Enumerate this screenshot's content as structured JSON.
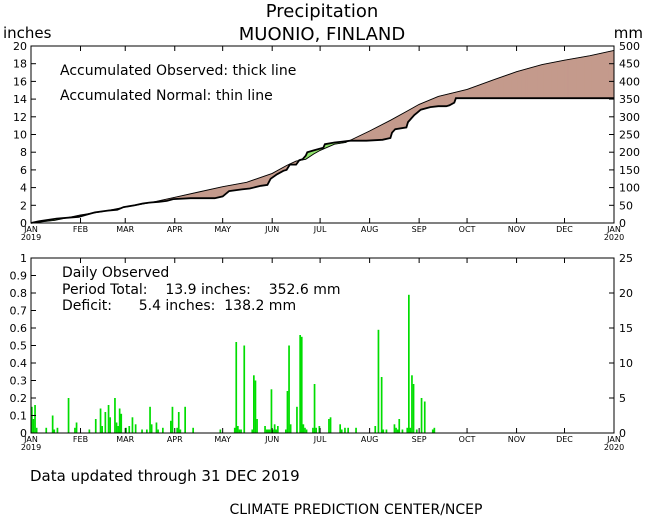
{
  "header": {
    "title": "Precipitation",
    "location": "MUONIO, FINLAND",
    "left_unit": "inches",
    "right_unit": "mm"
  },
  "footer": {
    "updated": "Data updated through 31 DEC 2019",
    "credit": "CLIMATE PREDICTION CENTER/NCEP"
  },
  "colors": {
    "deficit_fill": "#c49a8c",
    "surplus_fill": "#8fe36b",
    "daily_bar": "#00dd00",
    "axes": "#000000"
  },
  "chart_data": [
    {
      "type": "area",
      "legend": [
        "Accumulated Observed: thick line",
        "Accumulated Normal: thin line"
      ],
      "x_ticks": [
        "JAN",
        "FEB",
        "MAR",
        "APR",
        "MAY",
        "JUN",
        "JUL",
        "AUG",
        "SEP",
        "OCT",
        "NOV",
        "DEC",
        "JAN"
      ],
      "x_start_year": "2019",
      "x_end_year": "2020",
      "x_tick_days": [
        0,
        31,
        59,
        90,
        120,
        151,
        181,
        212,
        243,
        273,
        304,
        334,
        365
      ],
      "xlim": [
        0,
        365
      ],
      "ylim": [
        0,
        20
      ],
      "y_ticks": [
        "0",
        "2",
        "4",
        "6",
        "8",
        "10",
        "12",
        "14",
        "16",
        "18",
        "20"
      ],
      "y2lim": [
        0,
        500
      ],
      "y2_ticks": [
        "0",
        "50",
        "100",
        "150",
        "200",
        "250",
        "300",
        "350",
        "400",
        "450",
        "500"
      ],
      "series": [
        {
          "name": "Accumulated Normal",
          "points": [
            [
              0,
              0
            ],
            [
              15,
              0.3
            ],
            [
              31,
              0.9
            ],
            [
              45,
              1.3
            ],
            [
              59,
              1.8
            ],
            [
              75,
              2.3
            ],
            [
              90,
              2.9
            ],
            [
              105,
              3.5
            ],
            [
              120,
              4.1
            ],
            [
              135,
              4.6
            ],
            [
              151,
              5.6
            ],
            [
              160,
              6.5
            ],
            [
              166,
              7.0
            ],
            [
              172,
              7.2
            ],
            [
              177,
              7.8
            ],
            [
              181,
              8.2
            ],
            [
              190,
              8.9
            ],
            [
              197,
              9.1
            ],
            [
              212,
              10.4
            ],
            [
              225,
              11.6
            ],
            [
              235,
              12.6
            ],
            [
              243,
              13.4
            ],
            [
              255,
              14.3
            ],
            [
              273,
              15.1
            ],
            [
              290,
              16.2
            ],
            [
              304,
              17.1
            ],
            [
              320,
              17.9
            ],
            [
              334,
              18.4
            ],
            [
              350,
              18.9
            ],
            [
              365,
              19.5
            ]
          ]
        },
        {
          "name": "Accumulated Observed",
          "points": [
            [
              0,
              0
            ],
            [
              5,
              0.2
            ],
            [
              16,
              0.5
            ],
            [
              30,
              0.7
            ],
            [
              34,
              0.9
            ],
            [
              40,
              1.2
            ],
            [
              48,
              1.4
            ],
            [
              54,
              1.5
            ],
            [
              58,
              1.8
            ],
            [
              65,
              2.0
            ],
            [
              70,
              2.2
            ],
            [
              74,
              2.3
            ],
            [
              80,
              2.4
            ],
            [
              85,
              2.5
            ],
            [
              89,
              2.7
            ],
            [
              100,
              2.8
            ],
            [
              115,
              2.8
            ],
            [
              120,
              3.0
            ],
            [
              124,
              3.6
            ],
            [
              132,
              3.8
            ],
            [
              137,
              3.9
            ],
            [
              144,
              4.2
            ],
            [
              148,
              4.3
            ],
            [
              150,
              5.0
            ],
            [
              154,
              5.5
            ],
            [
              158,
              5.9
            ],
            [
              160,
              6.0
            ],
            [
              162,
              6.6
            ],
            [
              166,
              6.6
            ],
            [
              168,
              7.1
            ],
            [
              170,
              7.2
            ],
            [
              172,
              7.6
            ],
            [
              173,
              8.0
            ],
            [
              177,
              8.2
            ],
            [
              183,
              8.5
            ],
            [
              184,
              8.9
            ],
            [
              190,
              9.1
            ],
            [
              195,
              9.2
            ],
            [
              200,
              9.3
            ],
            [
              210,
              9.3
            ],
            [
              220,
              9.4
            ],
            [
              225,
              9.6
            ],
            [
              226,
              10.2
            ],
            [
              228,
              10.6
            ],
            [
              235,
              10.8
            ],
            [
              236,
              11.4
            ],
            [
              238,
              11.8
            ],
            [
              240,
              12.2
            ],
            [
              242,
              12.5
            ],
            [
              244,
              12.8
            ],
            [
              250,
              13.1
            ],
            [
              255,
              13.2
            ],
            [
              260,
              13.2
            ],
            [
              262,
              13.3
            ],
            [
              265,
              13.6
            ],
            [
              266,
              14.1
            ],
            [
              273,
              14.1
            ],
            [
              365,
              14.1
            ]
          ]
        }
      ]
    },
    {
      "type": "bar",
      "legend_title": "Daily Observed",
      "period_total": "Period Total:    13.9 inches:    352.6 mm",
      "deficit": "Deficit:      5.4 inches:  138.2 mm",
      "x_ticks": [
        "JAN",
        "FEB",
        "MAR",
        "APR",
        "MAY",
        "JUN",
        "JUL",
        "AUG",
        "SEP",
        "OCT",
        "NOV",
        "DEC",
        "JAN"
      ],
      "x_start_year": "2019",
      "x_end_year": "2020",
      "xlim": [
        0,
        365
      ],
      "ylim": [
        0,
        1
      ],
      "y_ticks": [
        "0",
        "0.1",
        "0.2",
        "0.3",
        "0.4",
        "0.5",
        "0.6",
        "0.7",
        "0.8",
        "0.9",
        "1"
      ],
      "y2lim": [
        0,
        25
      ],
      "y2_ticks": [
        "0",
        "5",
        "10",
        "15",
        "20",
        "25"
      ],
      "days": [
        0,
        1,
        2,
        3,
        9,
        13,
        14,
        16,
        23,
        27,
        28,
        36,
        40,
        43,
        44,
        46,
        48,
        49,
        52,
        53,
        54,
        55,
        56,
        59,
        61,
        63,
        65,
        69,
        72,
        74,
        75,
        78,
        79,
        82,
        87,
        88,
        91,
        92,
        93,
        96,
        101,
        118,
        127,
        128,
        129,
        130,
        131,
        133,
        138,
        139,
        140,
        141,
        146,
        147,
        148,
        149,
        150,
        151,
        152,
        153,
        154,
        159,
        160,
        161,
        162,
        166,
        168,
        169,
        170,
        171,
        172,
        176,
        177,
        178,
        180,
        186,
        187,
        193,
        194,
        196,
        198,
        203,
        215,
        217,
        219,
        220,
        222,
        227,
        228,
        229,
        230,
        232,
        235,
        236,
        237,
        238,
        239,
        241,
        244,
        246,
        251,
        252
      ],
      "values": [
        0.15,
        0.08,
        0.16,
        0.03,
        0.03,
        0.1,
        0.02,
        0.03,
        0.2,
        0.03,
        0.06,
        0.02,
        0.08,
        0.14,
        0.04,
        0.12,
        0.16,
        0.09,
        0.2,
        0.06,
        0.04,
        0.14,
        0.11,
        0.03,
        0.04,
        0.09,
        0.05,
        0.02,
        0.02,
        0.15,
        0.05,
        0.06,
        0.02,
        0.03,
        0.07,
        0.15,
        0.03,
        0.12,
        0.02,
        0.15,
        0.03,
        0.02,
        0.03,
        0.52,
        0.04,
        0.02,
        0.02,
        0.5,
        0.02,
        0.33,
        0.3,
        0.08,
        0.04,
        0.02,
        0.02,
        0.02,
        0.25,
        0.02,
        0.05,
        0.02,
        0.04,
        0.02,
        0.24,
        0.5,
        0.05,
        0.15,
        0.56,
        0.55,
        0.05,
        0.03,
        0.02,
        0.03,
        0.28,
        0.03,
        0.04,
        0.08,
        0.09,
        0.05,
        0.02,
        0.03,
        0.03,
        0.03,
        0.04,
        0.59,
        0.32,
        0.02,
        0.02,
        0.05,
        0.03,
        0.02,
        0.08,
        0.02,
        0.03,
        0.79,
        0.03,
        0.33,
        0.28,
        0.02,
        0.2,
        0.18,
        0.02,
        0.03
      ]
    }
  ]
}
